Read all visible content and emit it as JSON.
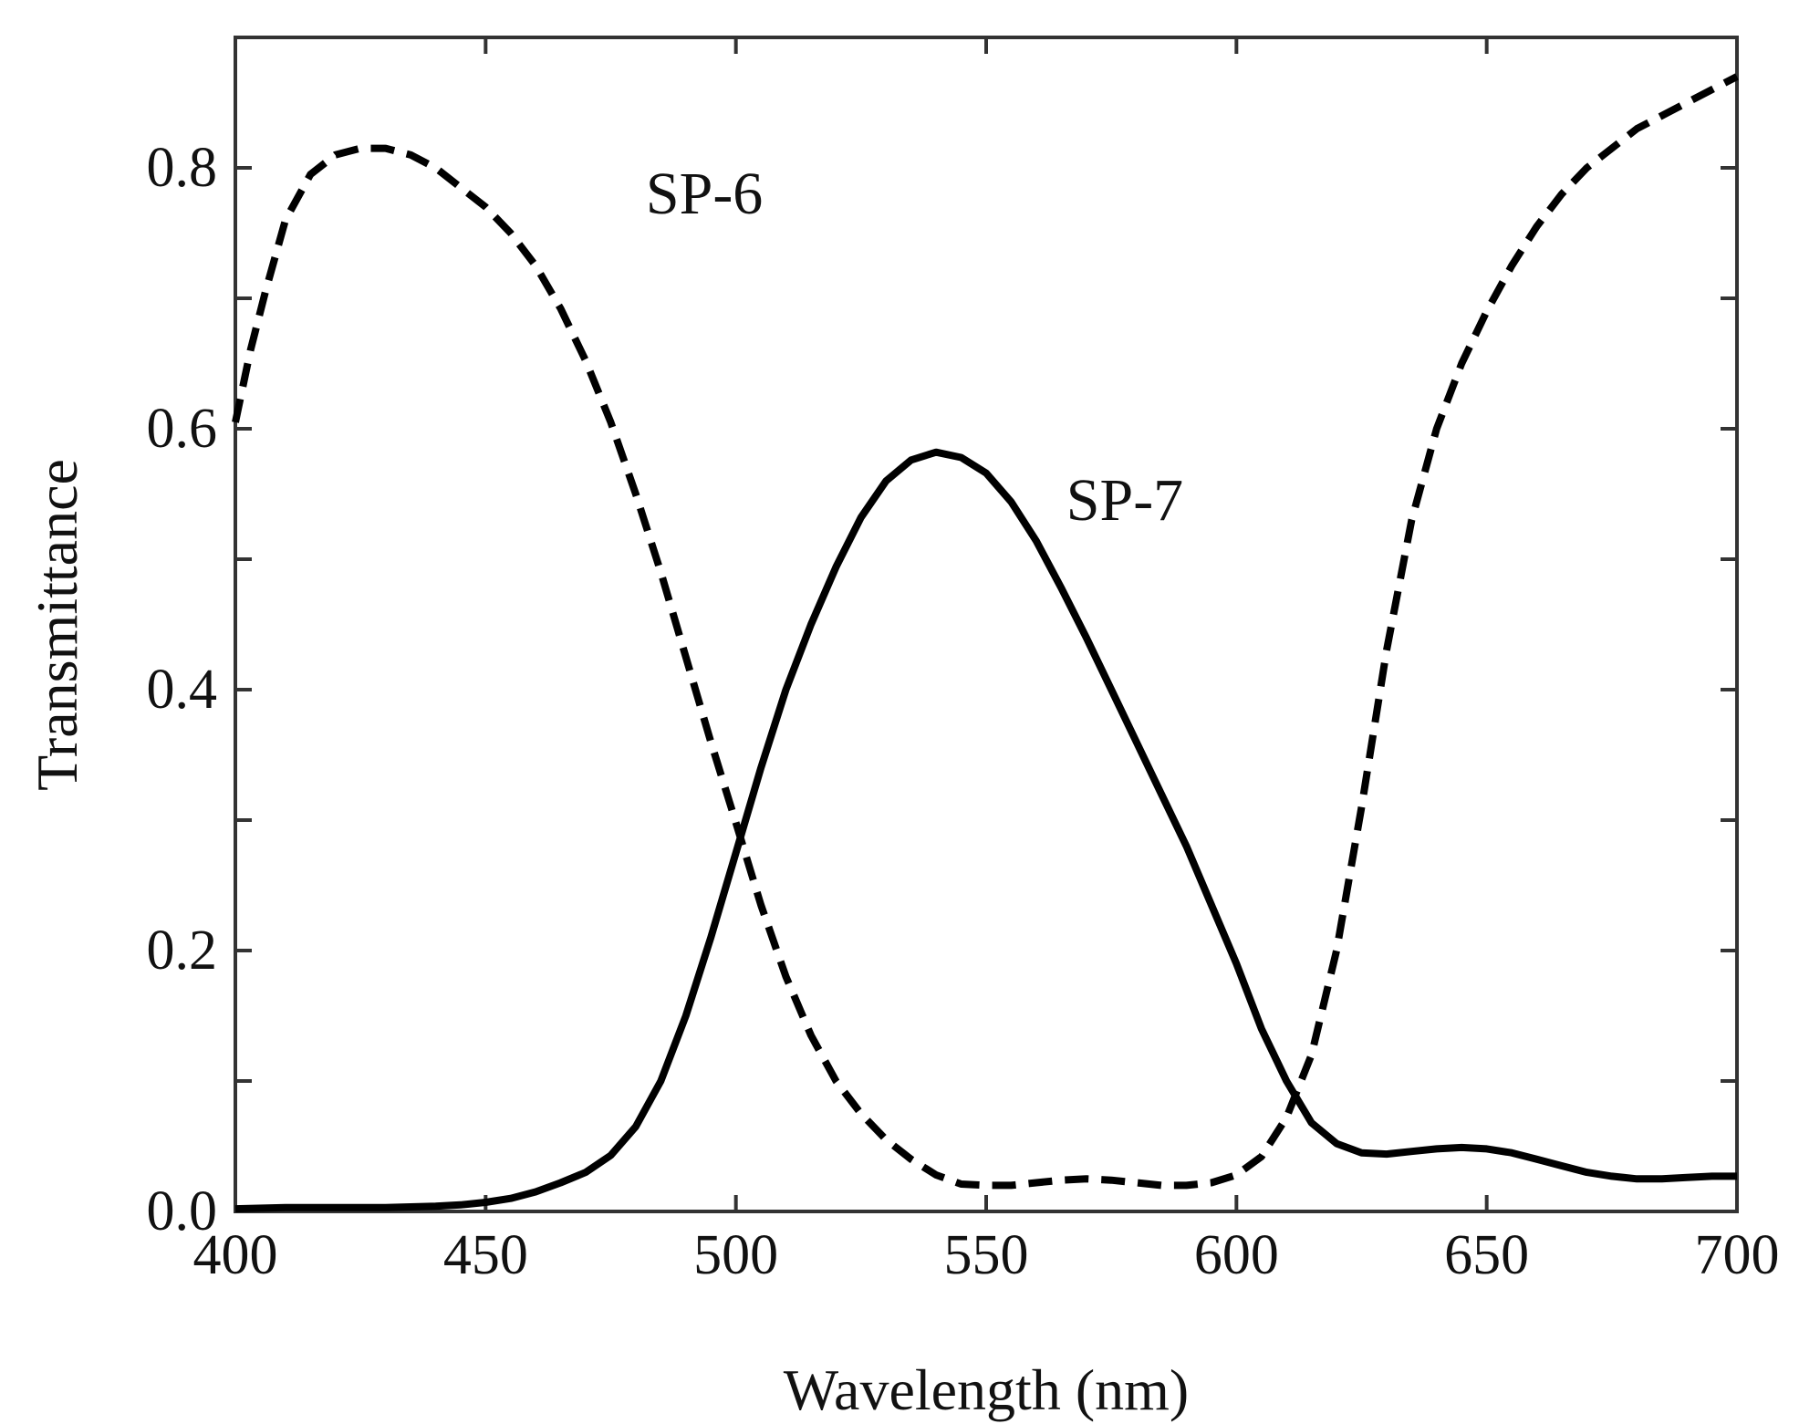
{
  "chart_data": {
    "type": "line",
    "title": "",
    "xlabel": "Wavelength (nm)",
    "ylabel": "Transmittance",
    "xlim": [
      400,
      700
    ],
    "ylim": [
      0.0,
      0.9
    ],
    "grid": false,
    "x_ticks": [
      400,
      450,
      500,
      550,
      600,
      650,
      700
    ],
    "x_tick_labels": [
      "400",
      "450",
      "500",
      "550",
      "600",
      "650",
      "700"
    ],
    "y_ticks": [
      0.0,
      0.1,
      0.2,
      0.3,
      0.4,
      0.5,
      0.6,
      0.7,
      0.8
    ],
    "y_tick_labels": [
      "0.0",
      "",
      "0.2",
      "",
      "0.4",
      "",
      "0.6",
      "",
      "0.8"
    ],
    "series": [
      {
        "name": "SP-6",
        "style": "dashed",
        "color": "#000000",
        "x": [
          400,
          403,
          406,
          410,
          415,
          420,
          425,
          430,
          435,
          440,
          445,
          450,
          455,
          460,
          465,
          470,
          475,
          480,
          485,
          490,
          495,
          500,
          505,
          510,
          515,
          520,
          525,
          530,
          535,
          540,
          545,
          550,
          555,
          560,
          565,
          570,
          575,
          580,
          585,
          590,
          595,
          600,
          605,
          610,
          615,
          620,
          625,
          630,
          635,
          640,
          645,
          650,
          655,
          660,
          665,
          670,
          675,
          680,
          685,
          690,
          695,
          700
        ],
        "values": [
          0.605,
          0.66,
          0.705,
          0.76,
          0.795,
          0.81,
          0.815,
          0.815,
          0.81,
          0.8,
          0.785,
          0.77,
          0.75,
          0.725,
          0.692,
          0.652,
          0.605,
          0.55,
          0.49,
          0.425,
          0.36,
          0.298,
          0.235,
          0.18,
          0.135,
          0.1,
          0.075,
          0.055,
          0.04,
          0.028,
          0.021,
          0.02,
          0.02,
          0.022,
          0.024,
          0.025,
          0.024,
          0.022,
          0.02,
          0.02,
          0.022,
          0.028,
          0.042,
          0.072,
          0.12,
          0.2,
          0.31,
          0.43,
          0.53,
          0.6,
          0.65,
          0.69,
          0.725,
          0.755,
          0.78,
          0.8,
          0.815,
          0.83,
          0.84,
          0.85,
          0.86,
          0.87
        ]
      },
      {
        "name": "SP-7",
        "style": "solid",
        "color": "#000000",
        "x": [
          400,
          410,
          420,
          430,
          440,
          445,
          450,
          455,
          460,
          465,
          470,
          475,
          480,
          485,
          490,
          495,
          500,
          505,
          510,
          515,
          520,
          525,
          530,
          535,
          540,
          545,
          550,
          555,
          560,
          565,
          570,
          575,
          580,
          585,
          590,
          595,
          600,
          605,
          610,
          615,
          620,
          625,
          630,
          635,
          640,
          645,
          650,
          655,
          660,
          665,
          670,
          675,
          680,
          685,
          690,
          695,
          700
        ],
        "values": [
          0.002,
          0.003,
          0.003,
          0.003,
          0.004,
          0.005,
          0.007,
          0.01,
          0.015,
          0.022,
          0.03,
          0.043,
          0.065,
          0.1,
          0.15,
          0.21,
          0.275,
          0.34,
          0.4,
          0.45,
          0.494,
          0.532,
          0.56,
          0.576,
          0.582,
          0.578,
          0.566,
          0.544,
          0.514,
          0.478,
          0.44,
          0.4,
          0.36,
          0.32,
          0.28,
          0.235,
          0.19,
          0.14,
          0.1,
          0.068,
          0.052,
          0.045,
          0.044,
          0.046,
          0.048,
          0.049,
          0.048,
          0.045,
          0.04,
          0.035,
          0.03,
          0.027,
          0.025,
          0.025,
          0.026,
          0.027,
          0.027
        ]
      }
    ],
    "annotations": [
      {
        "text": "SP-6",
        "x": 482,
        "y": 0.765
      },
      {
        "text": "SP-7",
        "x": 566,
        "y": 0.53
      }
    ]
  }
}
